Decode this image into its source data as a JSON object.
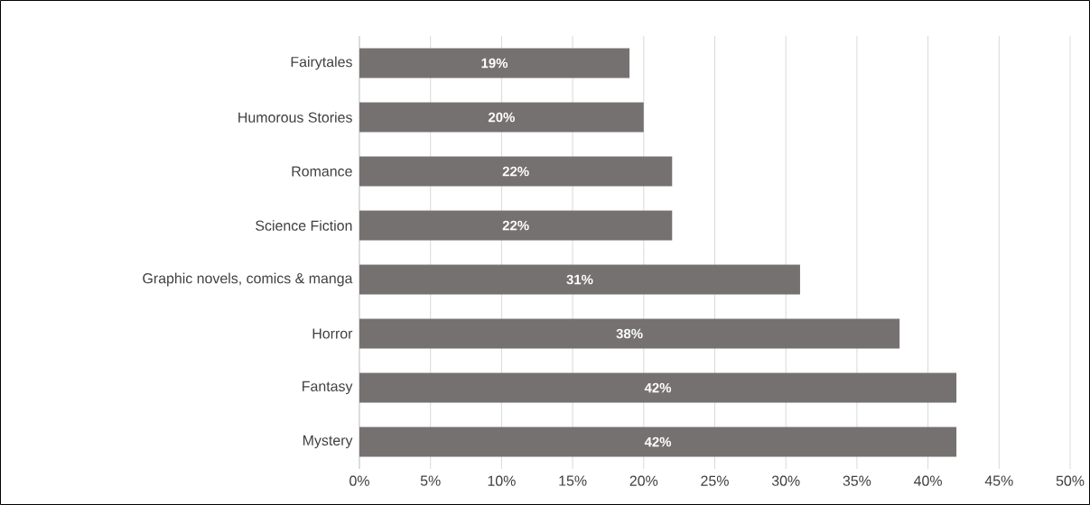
{
  "chart_data": {
    "type": "bar",
    "orientation": "horizontal",
    "categories": [
      "Fairytales",
      "Humorous Stories",
      "Romance",
      "Science Fiction",
      "Graphic novels, comics & manga",
      "Horror",
      "Fantasy",
      "Mystery"
    ],
    "values": [
      19,
      20,
      22,
      22,
      31,
      38,
      42,
      42
    ],
    "value_labels": [
      "19%",
      "20%",
      "22%",
      "22%",
      "31%",
      "38%",
      "42%",
      "42%"
    ],
    "color": "#767171",
    "xlim": [
      0,
      50
    ],
    "xticks": [
      {
        "value": 0,
        "label": "0%"
      },
      {
        "value": 5,
        "label": "5%"
      },
      {
        "value": 10,
        "label": "10%"
      },
      {
        "value": 15,
        "label": "15%"
      },
      {
        "value": 20,
        "label": "20%"
      },
      {
        "value": 25,
        "label": "25%"
      },
      {
        "value": 30,
        "label": "30%"
      },
      {
        "value": 35,
        "label": "35%"
      },
      {
        "value": 40,
        "label": "40%"
      },
      {
        "value": 45,
        "label": "45%"
      },
      {
        "value": 50,
        "label": "50%"
      }
    ],
    "grid": "x"
  }
}
